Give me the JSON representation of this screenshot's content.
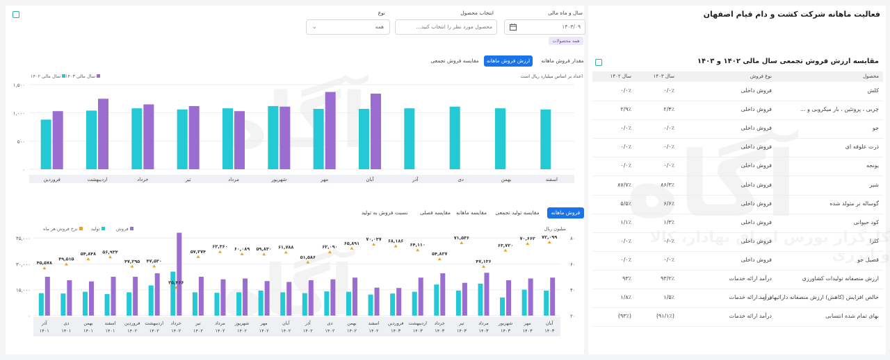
{
  "page": {
    "title": "فعالیت ماهانه شرکت کشت و دام قیام اصفهان"
  },
  "filters": {
    "year_month": {
      "label": "سال و ماه مالی",
      "value": "۱۴۰۳/۰۹"
    },
    "product": {
      "label": "انتخاب محصول",
      "placeholder": "محصول مورد نظر را انتخاب کنید..."
    },
    "type": {
      "label": "نوع",
      "value": "همه"
    },
    "all_products_chip": "همه محصولات"
  },
  "table_section": {
    "title": "مقایسه ارزش فروش تجمعی سال مالی ۱۴۰۲ و ۱۴۰۳",
    "headers": [
      "محصول",
      "نوع فروش",
      "سال ۱۴۰۳",
      "سال ۱۴۰۲"
    ],
    "rows": [
      [
        "کلش",
        "فروش داخلی",
        "۰/۰٪",
        "۰/۰٪"
      ],
      [
        "چربی ، پروتئین ، بار میکروبی و ...",
        "فروش داخلی",
        "۲/۴٪",
        "۲/۹٪"
      ],
      [
        "جو",
        "فروش داخلی",
        "۰/۰٪",
        "۰/۰٪"
      ],
      [
        "ذرت علوفه ای",
        "فروش داخلی",
        "۰/۰٪",
        "۰/۰٪"
      ],
      [
        "یونجه",
        "فروش داخلی",
        "۰/۰٪",
        "۰/۰٪"
      ],
      [
        "شیر",
        "فروش داخلی",
        "۸۶/۳٪",
        "۸۷/۷٪"
      ],
      [
        "گوساله نر متولد شده",
        "فروش داخلی",
        "۶/۶٪",
        "۵/۵٪"
      ],
      [
        "کود حیوانی",
        "فروش داخلی",
        "۱/۳٪",
        "۱/۱٪"
      ],
      [
        "کلزا",
        "فروش داخلی",
        "۰/۰٪",
        "۰/۰٪"
      ],
      [
        "قصیل جو",
        "فروش داخلی",
        "۰/۰٪",
        "۰/۰٪"
      ],
      [
        "ارزش منصفانه تولیدات کشاورزی",
        "درآمد ارائه خدمات",
        "۹۳/۲٪",
        "۹۳٪"
      ],
      [
        "خالص افزایش (کاهش) ارزش منصفانه دارائیهای ز...",
        "درآمد ارائه خدمات",
        "۱/۵٪",
        "۱/۸٪"
      ],
      [
        "بهای تمام شده انتسابی",
        "درآمد ارائه خدمات",
        "(۹۱/۱٪)",
        "(۹۳٪)"
      ]
    ]
  },
  "top_chart": {
    "tabs": [
      "مقدار فروش ماهانه",
      "ارزش فروش ماهانه",
      "مقایسه فروش تجمعی"
    ],
    "active_tab": 1,
    "note": "اعداد بر اساس میلیارد ریال است",
    "legend": [
      {
        "label": "سال مالی ۱۴۰۳",
        "color": "#9b6dd1"
      },
      {
        "label": "سال مالی ۱۴۰۲",
        "color": "#25c9d6"
      }
    ]
  },
  "bottom_chart": {
    "tabs": [
      "فروش ماهانه",
      "مقایسه تولید تجمعی",
      "مقایسه ماهانه",
      "مقایسه فصلی",
      "نسبت فروش به تولید"
    ],
    "active_tab": 0,
    "unit_left": "میلیون ریال",
    "legend": [
      {
        "label": "فروش",
        "color": "#9b6dd1"
      },
      {
        "label": "تولید",
        "color": "#25c9d6"
      },
      {
        "label": "نرخ فروش هر ماه",
        "color": "#f0a020"
      }
    ]
  },
  "watermark": {
    "brand": "آگاه",
    "tagline": "کارگزار بورس اوراق بهادار، کالا و انرژی"
  },
  "chart_data": [
    {
      "type": "bar",
      "title": "ارزش فروش ماهانه",
      "categories": [
        "اسفند",
        "بهمن",
        "دی",
        "آذر",
        "آبان",
        "مهر",
        "شهریور",
        "مرداد",
        "تیر",
        "خرداد",
        "اردیبهشت",
        "فروردین"
      ],
      "series": [
        {
          "name": "سال مالی ۱۴۰۲",
          "color": "#25c9d6",
          "values": [
            1060,
            1080,
            1110,
            1080,
            1070,
            1070,
            1120,
            1080,
            1060,
            1080,
            1040,
            880
          ]
        },
        {
          "name": "سال مالی ۱۴۰۳",
          "color": "#9b6dd1",
          "values": [
            null,
            null,
            null,
            null,
            1340,
            1370,
            1110,
            1030,
            1120,
            1150,
            1250,
            1030
          ]
        }
      ],
      "yticks": [
        "۰",
        "۵۰۰",
        "۱,۰۰۰",
        "۱,۵۰۰"
      ],
      "ylim": [
        0,
        1500
      ]
    },
    {
      "type": "bar",
      "title": "فروش ماهانه",
      "categories": [
        [
          "آبان",
          "۱۴۰۳"
        ],
        [
          "مهر",
          "۱۴۰۳"
        ],
        [
          "شهریور",
          "۱۴۰۳"
        ],
        [
          "مرداد",
          "۱۴۰۳"
        ],
        [
          "تیر",
          "۱۴۰۳"
        ],
        [
          "خرداد",
          "۱۴۰۳"
        ],
        [
          "اردیبهشت",
          "۱۴۰۳"
        ],
        [
          "فروردین",
          "۱۴۰۳"
        ],
        [
          "اسفند",
          "۱۴۰۲"
        ],
        [
          "بهمن",
          "۱۴۰۲"
        ],
        [
          "دی",
          "۱۴۰۲"
        ],
        [
          "آذر",
          "۱۴۰۲"
        ],
        [
          "آبان",
          "۱۴۰۲"
        ],
        [
          "مهر",
          "۱۴۰۲"
        ],
        [
          "شهریور",
          "۱۴۰۲"
        ],
        [
          "مرداد",
          "۱۴۰۲"
        ],
        [
          "تیر",
          "۱۴۰۲"
        ],
        [
          "خرداد",
          "۱۴۰۲"
        ],
        [
          "اردیبهشت",
          "۱۴۰۲"
        ],
        [
          "فروردین",
          "۱۴۰۲"
        ],
        [
          "اسفند",
          "۱۴۰۱"
        ],
        [
          "بهمن",
          "۱۴۰۱"
        ],
        [
          "دی",
          "۱۴۰۱"
        ],
        [
          "آذر",
          "۱۴۰۱"
        ]
      ],
      "series": [
        {
          "name": "تولید",
          "color": "#25c9d6",
          "values": [
            14500,
            15000,
            10500,
            18500,
            14500,
            18000,
            13800,
            12800,
            12200,
            13800,
            14000,
            13000,
            13500,
            14500,
            13500,
            13200,
            13500,
            25500,
            17500,
            13500,
            12500,
            13800,
            12800,
            13000
          ]
        },
        {
          "name": "فروش",
          "color": "#9b6dd1",
          "values": [
            22000,
            21500,
            20500,
            24800,
            19000,
            24500,
            22000,
            16000,
            16200,
            22000,
            21000,
            20500,
            19500,
            20000,
            21500,
            21000,
            22500,
            48000,
            24500,
            22500,
            22500,
            19800,
            20500,
            22500
          ]
        }
      ],
      "rate_series": {
        "name": "نرخ فروش هر ماه",
        "color": "#f0a020",
        "values": [
          72099,
          70662,
          63720,
          47136,
          71536,
          54827,
          64110,
          68186,
          70037,
          65891,
          62090,
          51586,
          61788,
          59830,
          60089,
          62360,
          57274,
          25466,
          47520,
          47295,
          56934,
          54848,
          49515,
          45578
        ],
        "labels": [
          "۷۲,۰۹۹",
          "۷۰,۶۶۲",
          "۶۳,۷۲۰",
          "۴۷,۱۳۶",
          "۷۱,۵۳۶",
          "۵۴,۸۲۷",
          "۶۴,۱۱۰",
          "۶۸,۱۸۶",
          "۷۰,۰۳۷",
          "۶۵,۸۹۱",
          "۶۲,۰۹۰",
          "۵۱,۵۸۶",
          "۶۱,۷۸۸",
          "۵۹,۸۳۰",
          "۶۰,۰۸۹",
          "۶۲,۳۶۰",
          "۵۷,۲۷۴",
          "۲۵,۴۶۶",
          "۴۷,۵۲۰",
          "۴۷,۲۹۵",
          "۵۶,۹۳۴",
          "۵۴,۸۴۸",
          "۴۹,۵۱۵",
          "۴۵,۵۷۸"
        ]
      },
      "yticks_left": [
        "۰",
        "۱۵,۰۰۰",
        "۳۰,۰۰۰",
        "۴۵,۰۰۰"
      ],
      "ylim_left": [
        0,
        45000
      ],
      "yticks_right": [
        "۲۰",
        "۴۰",
        "۶۰",
        "۸۰"
      ],
      "ylim_right": [
        20,
        80
      ]
    }
  ]
}
